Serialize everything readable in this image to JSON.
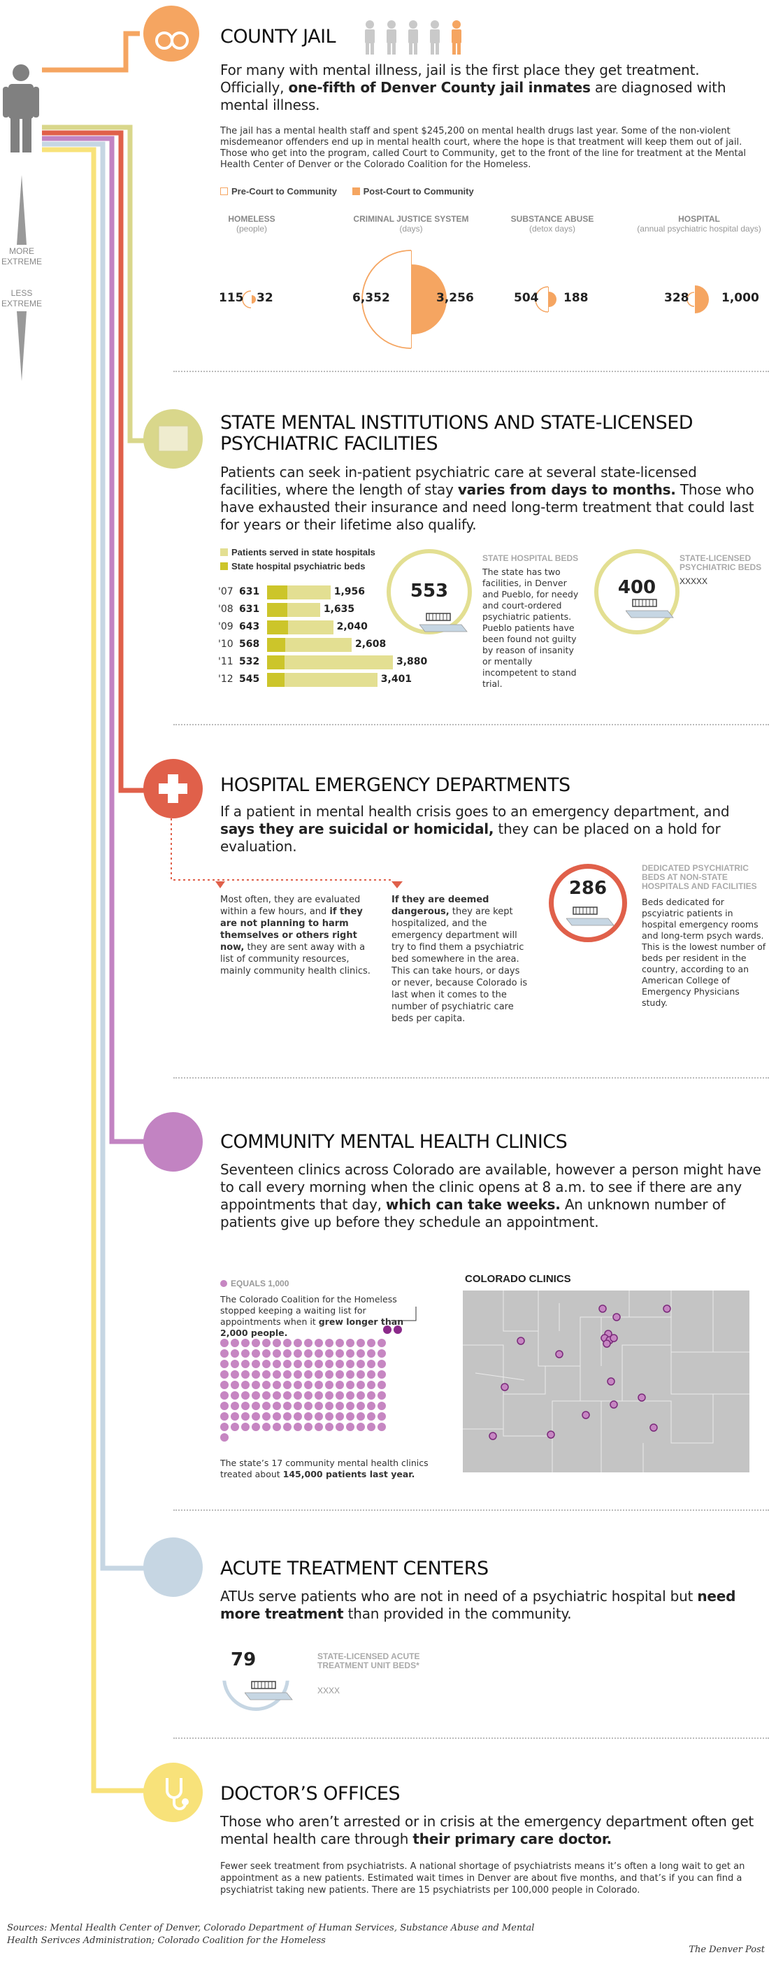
{
  "sidebar": {
    "more_extreme": "MORE\nEXTREME",
    "less_extreme": "LESS\nEXTREME"
  },
  "colors": {
    "orange": "#f5a561",
    "olive": "#d9d78b",
    "red": "#e0604a",
    "purple": "#c283c2",
    "blue": "#c6d6e3",
    "yellow": "#f8e27a"
  },
  "jail": {
    "title": "COUNTY JAIL",
    "lead_1": "For many with mental illness, jail is the first place they get treatment. Officially, ",
    "lead_bold": "one-fifth of Denver County jail inmates",
    "lead_2": " are diagnosed with mental illness.",
    "body": "The jail has a mental health staff and spent $245,200 on mental health drugs last year. Some of the non-violent misdemeanor offenders end up in mental health court, where the hope is that treatment will keep them out of jail. Those who get into the program, called Court to Community, get to the front of the line for treatment at the Mental Health Center of Denver or the Colorado Coalition for the Homeless.",
    "legend_pre": "Pre-Court to Community",
    "legend_post": "Post-Court to Community",
    "stats": [
      {
        "name": "HOMELESS",
        "sub": "(people)",
        "pre": 115,
        "post": 32
      },
      {
        "name": "CRIMINAL JUSTICE SYSTEM",
        "sub": "(days)",
        "pre": 6352,
        "post": 3256,
        "pre_label": "6,352",
        "post_label": "3,256"
      },
      {
        "name": "SUBSTANCE ABUSE",
        "sub": "(detox days)",
        "pre": 504,
        "post": 188
      },
      {
        "name": "HOSPITAL",
        "sub": "(annual psychiatric hospital days)",
        "pre": 328,
        "post": 1000,
        "post_label": "1,000"
      }
    ]
  },
  "state": {
    "title_1": "STATE MENTAL INSTITUTIONS AND STATE-LICENSED",
    "title_2": "PSYCHIATRIC FACILITIES",
    "lead_1": "Patients can seek in-patient psychiatric care at several state-licensed facilities, where the length of stay ",
    "lead_bold": "varies from days to months.",
    "lead_2": " Those who have exhausted their insurance and need long-term treatment that could last for years or their lifetime also qualify.",
    "legend_served": "Patients served in state hospitals",
    "legend_beds": "State hospital psychiatric beds",
    "beds_number": "553",
    "beds_label": "STATE HOSPITAL BEDS",
    "beds_desc": "The state has two facilities, in Denver and Pueblo, for needy and court-ordered psychiatric patients. Pueblo patients have been found not guilty by reason of insanity or mentally incompetent to stand trial.",
    "licensed_number": "400",
    "licensed_label": "STATE-LICENSED PSYCHIATRIC BEDS",
    "licensed_desc": "XXXXX"
  },
  "chart_data": {
    "type": "bar",
    "categories": [
      "'07",
      "'08",
      "'09",
      "'10",
      "'11",
      "'12"
    ],
    "series": [
      {
        "name": "State hospital psychiatric beds",
        "values": [
          631,
          631,
          643,
          568,
          532,
          545
        ]
      },
      {
        "name": "Patients served in state hospitals",
        "values": [
          1956,
          1635,
          2040,
          2608,
          3880,
          3401
        ]
      }
    ],
    "value_labels": {
      "beds": [
        "631",
        "631",
        "643",
        "568",
        "532",
        "545"
      ],
      "served": [
        "1,956",
        "1,635",
        "2,040",
        "2,608",
        "3,880",
        "3,401"
      ]
    }
  },
  "er": {
    "title": "HOSPITAL EMERGENCY DEPARTMENTS",
    "lead_1": "If a patient in mental health crisis goes to an emergency department, and ",
    "lead_bold": "says they are suicidal or homicidal,",
    "lead_2": " they can be placed on a hold for evaluation.",
    "col1_1": "Most often, they are evaluated within a few hours, and ",
    "col1_bold": "if they are not planning to harm themselves or others right now,",
    "col1_2": " they are sent away with a list of community resources, mainly community health clinics.",
    "col2_bold": "If they are deemed dangerous,",
    "col2_2": " they are kept hospitalized, and the emergency department will try to find them a psychiatric bed somewhere in the area. This can take hours, or days or never, because Colorado is last when it comes to the number of psychiatric care beds per capita.",
    "beds_number": "286",
    "beds_label": "DEDICATED PSYCHIATRIC BEDS AT NON-STATE HOSPITALS AND FACILITIES",
    "beds_desc": "Beds dedicated for pscyiatric patients in hospital emergency rooms and long-term psych wards. This is the lowest number of beds per resident in the country, according to an American College of Emergency Physicians study."
  },
  "clinics": {
    "title": "COMMUNITY MENTAL HEALTH CLINICS",
    "lead_1": "Seventeen clinics across Colorado are available, however a person might have to call every morning when the clinic opens at 8 a.m. to see if there are any appointments that day, ",
    "lead_bold": "which can take weeks.",
    "lead_2": " An unknown number of patients give up before they schedule an appointment.",
    "equals": "EQUALS 1,000",
    "wait_1": "The Colorado Coalition for the Homeless stopped keeping a waiting list for appointments when it ",
    "wait_bold": "grew longer than 2,000 people.",
    "treated_1": "The state’s 17 community mental health clinics treated about ",
    "treated_bold": "145,000 patients last year.",
    "map_title": "COLORADO CLINICS"
  },
  "atu": {
    "title": "ACUTE TREATMENT CENTERS",
    "lead_1": "ATUs serve patients who are not in need of a psychiatric hospital but ",
    "lead_bold": "need more treatment",
    "lead_2": " than provided in the community.",
    "beds_number": "79",
    "beds_label": "STATE-LICENSED ACUTE TREATMENT UNIT BEDS*",
    "beds_desc": "XXXX"
  },
  "doctor": {
    "title": "DOCTOR’S OFFICES",
    "lead_1": "Those who aren’t arrested or in crisis at the emergency department often get mental health care through ",
    "lead_bold": "their primary care doctor.",
    "body": "Fewer seek treatment from psychiatrists. A national shortage of psychiatrists means it’s often a long wait to get an appointment as a new patients. Estimated wait times in Denver are about five months, and that’s if you can find a psychiatrist taking new patients. There are 15 psychiatrists per 100,000 people in Colorado."
  },
  "footer": {
    "sources": "Sources: Mental Health Center of Denver, Colorado Department of Human Services, Substance Abuse and Mental Health Serivces Administration; Colorado Coalition for the Homeless",
    "credit": "The Denver Post"
  }
}
